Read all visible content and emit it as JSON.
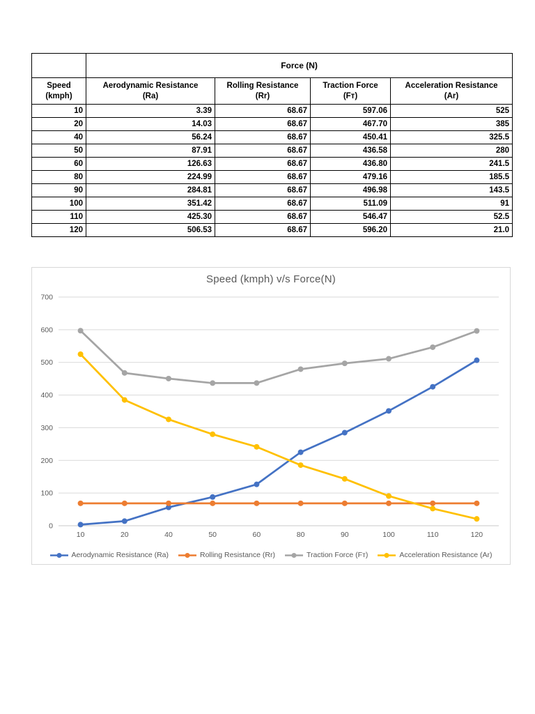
{
  "table": {
    "force_header": "Force (N)",
    "columns": [
      {
        "line1": "Speed",
        "line2": "(kmph)"
      },
      {
        "line1": "Aerodynamic Resistance",
        "line2": "(Ra)"
      },
      {
        "line1": "Rolling Resistance",
        "line2": "(Rr)"
      },
      {
        "line1": "Traction Force",
        "line2": "(Fт)"
      },
      {
        "line1": "Acceleration Resistance",
        "line2": "(Ar)"
      }
    ],
    "rows": [
      [
        "10",
        "3.39",
        "68.67",
        "597.06",
        "525"
      ],
      [
        "20",
        "14.03",
        "68.67",
        "467.70",
        "385"
      ],
      [
        "40",
        "56.24",
        "68.67",
        "450.41",
        "325.5"
      ],
      [
        "50",
        "87.91",
        "68.67",
        "436.58",
        "280"
      ],
      [
        "60",
        "126.63",
        "68.67",
        "436.80",
        "241.5"
      ],
      [
        "80",
        "224.99",
        "68.67",
        "479.16",
        "185.5"
      ],
      [
        "90",
        "284.81",
        "68.67",
        "496.98",
        "143.5"
      ],
      [
        "100",
        "351.42",
        "68.67",
        "511.09",
        "91"
      ],
      [
        "110",
        "425.30",
        "68.67",
        "546.47",
        "52.5"
      ],
      [
        "120",
        "506.53",
        "68.67",
        "596.20",
        "21.0"
      ]
    ]
  },
  "chart_data": {
    "type": "line",
    "title": "Speed (kmph) v/s Force(N)",
    "categories": [
      "10",
      "20",
      "40",
      "50",
      "60",
      "80",
      "90",
      "100",
      "110",
      "120"
    ],
    "series": [
      {
        "name": "Aerodynamic Resistance (Ra)",
        "color": "#4472C4",
        "values": [
          3.39,
          14.03,
          56.24,
          87.91,
          126.63,
          224.99,
          284.81,
          351.42,
          425.3,
          506.53
        ]
      },
      {
        "name": "Rolling Resistance (Rr)",
        "color": "#ED7D31",
        "values": [
          68.67,
          68.67,
          68.67,
          68.67,
          68.67,
          68.67,
          68.67,
          68.67,
          68.67,
          68.67
        ]
      },
      {
        "name": "Traction Force (Fт)",
        "color": "#A5A5A5",
        "values": [
          597.06,
          467.7,
          450.41,
          436.58,
          436.8,
          479.16,
          496.98,
          511.09,
          546.47,
          596.2
        ]
      },
      {
        "name": "Acceleration Resistance (Ar)",
        "color": "#FFC000",
        "values": [
          525,
          385,
          325.5,
          280,
          241.5,
          185.5,
          143.5,
          91,
          52.5,
          21.0
        ]
      }
    ],
    "xlabel": "",
    "ylabel": "",
    "ylim": [
      0,
      700
    ],
    "yticks": [
      0,
      100,
      200,
      300,
      400,
      500,
      600,
      700
    ],
    "grid": "horizontal",
    "legend_position": "bottom",
    "grid_color": "#d9d9d9",
    "axis_line_color": "#c8c8c8",
    "tick_label_color": "#595959",
    "title_color": "#595959"
  }
}
